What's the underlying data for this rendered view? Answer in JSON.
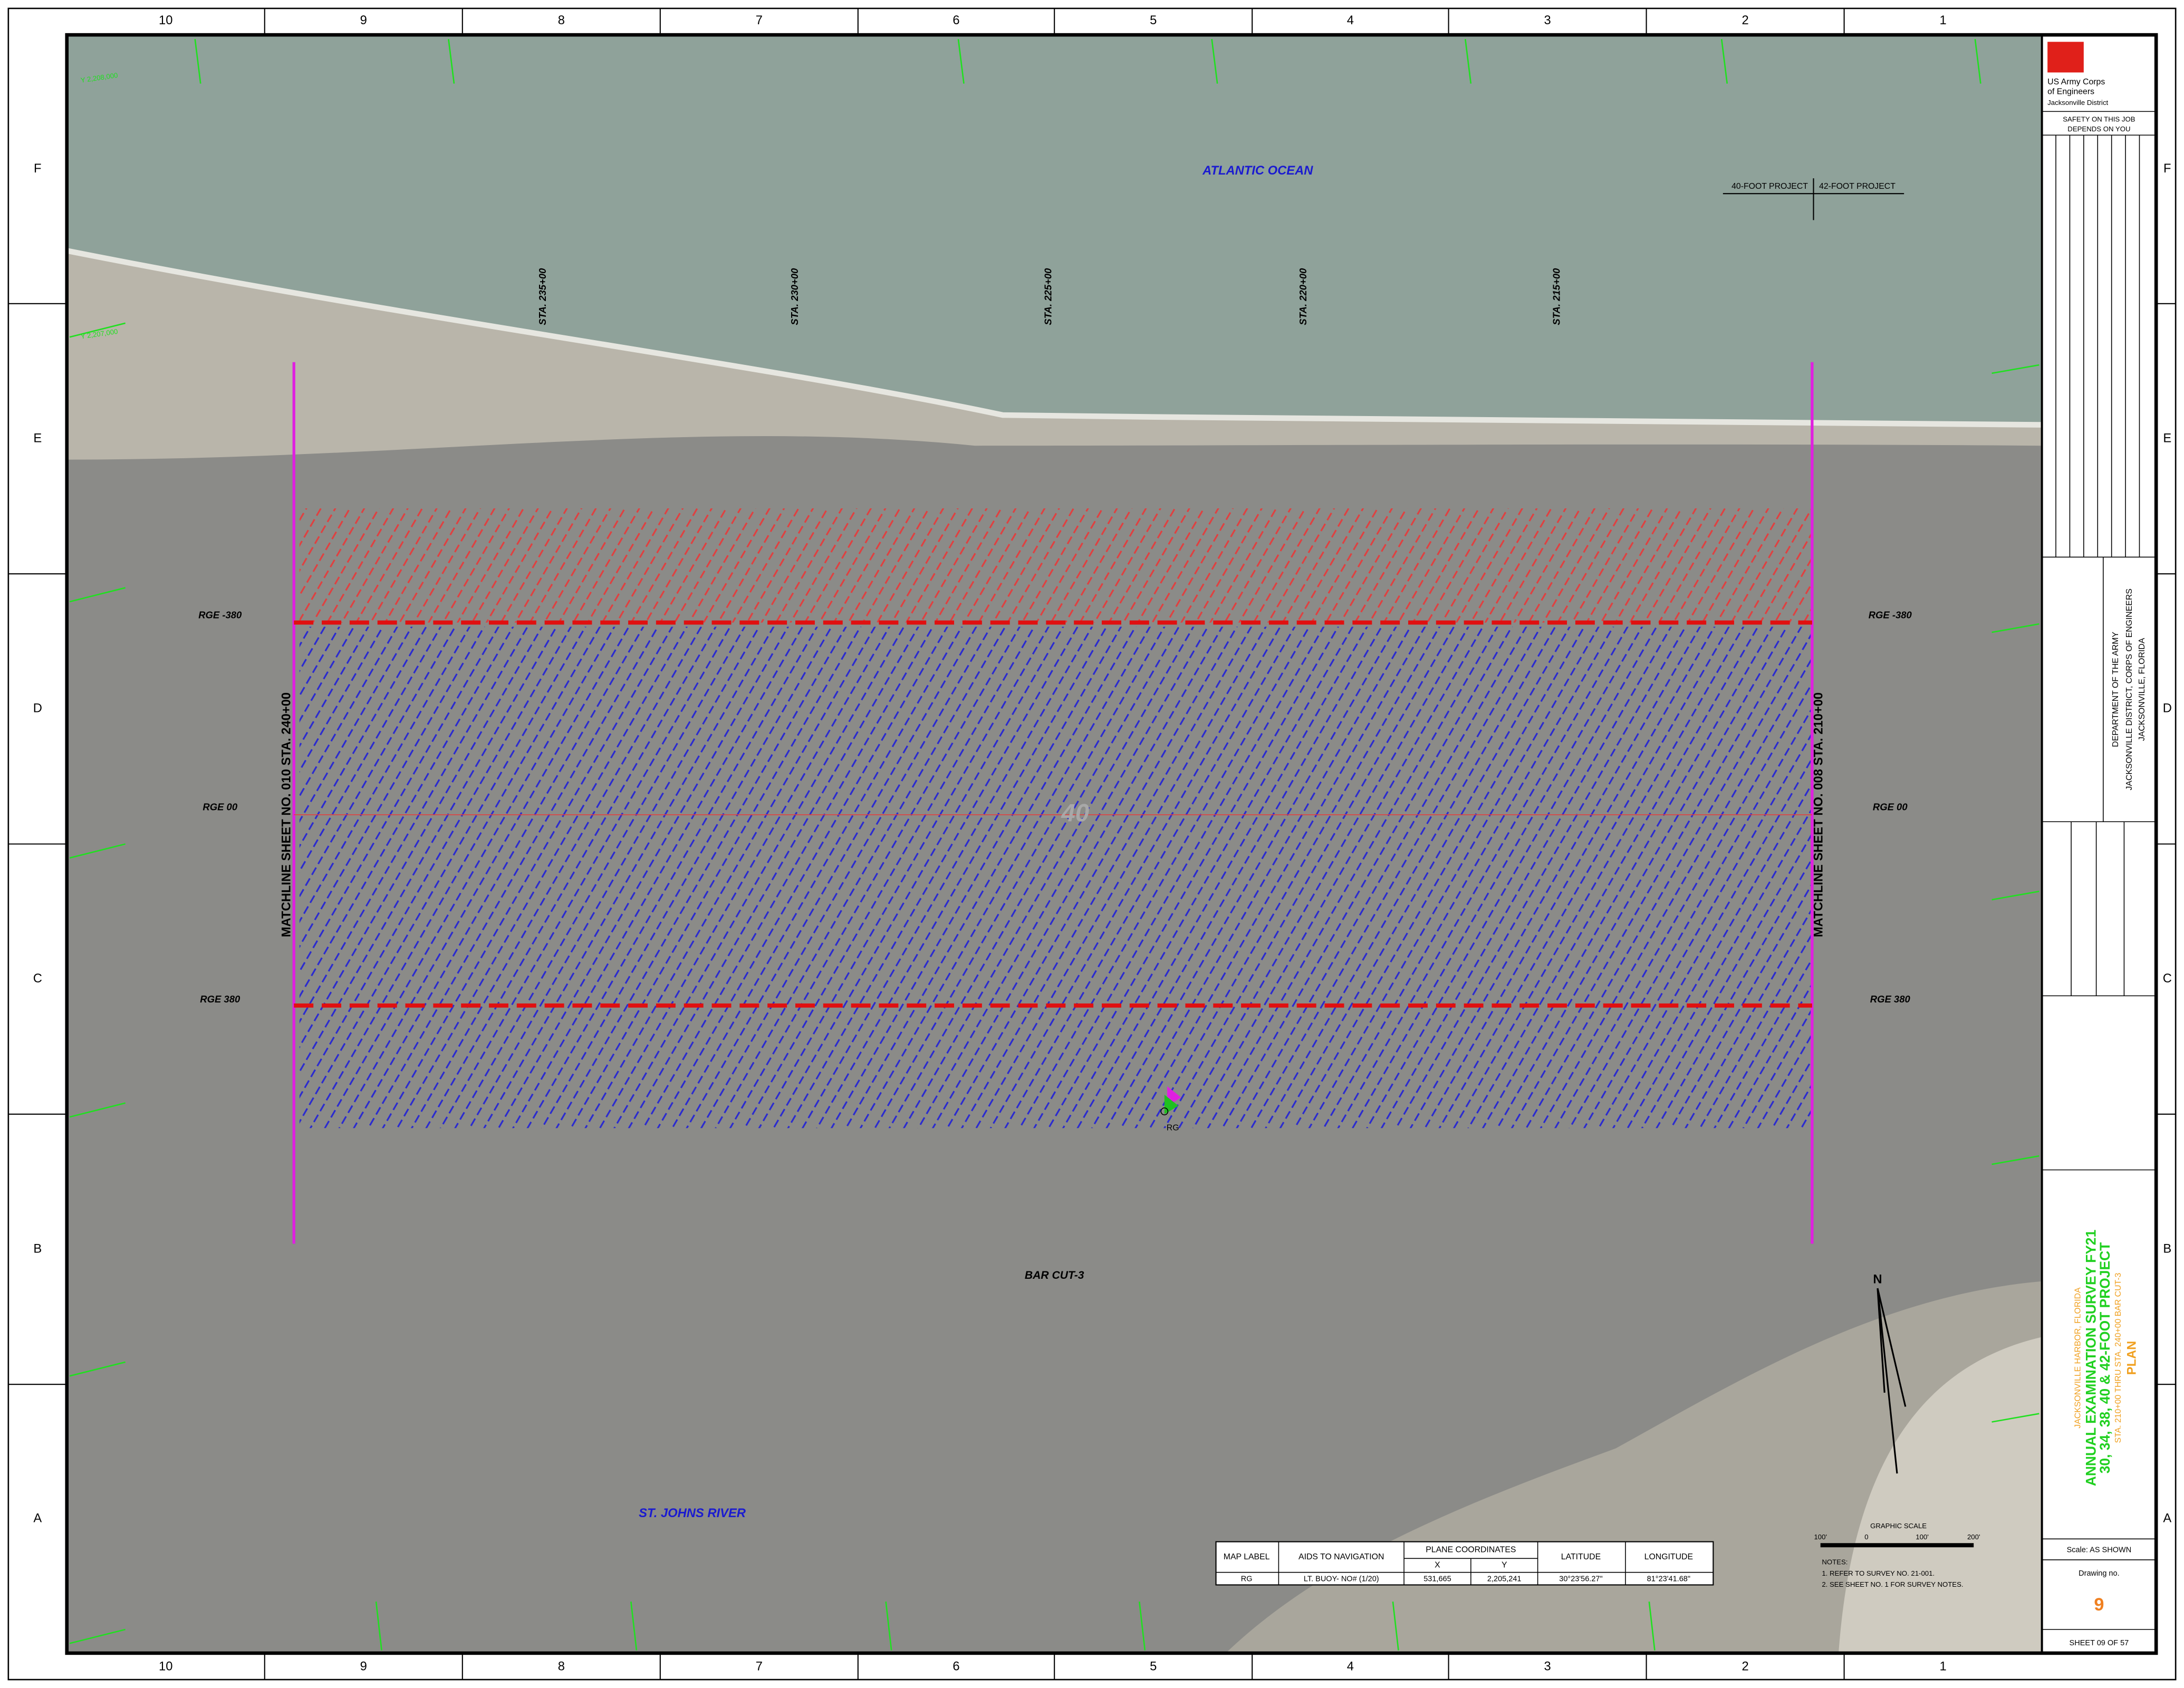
{
  "sheet": {
    "columns": [
      "10",
      "9",
      "8",
      "7",
      "6",
      "5",
      "4",
      "3",
      "2",
      "1"
    ],
    "rows": [
      "F",
      "E",
      "D",
      "C",
      "B",
      "A"
    ]
  },
  "map": {
    "ocean": "ATLANTIC OCEAN",
    "river": "ST. JOHNS RIVER",
    "cut": "BAR CUT-3",
    "depth": "40",
    "buoy": "RG",
    "project_left": "40-FOOT PROJECT",
    "project_right": "42-FOOT PROJECT",
    "stations": [
      "STA. 235+00",
      "STA. 230+00",
      "STA. 225+00",
      "STA. 220+00",
      "STA. 215+00"
    ],
    "matchlines": [
      "MATCHLINE SHEET NO. 010 STA. 240+00",
      "MATCHLINE SHEET NO. 008 STA. 210+00"
    ],
    "ranges": [
      "RGE -380",
      "RGE 00",
      "RGE 380"
    ],
    "grid_y": [
      "Y 2,208,000",
      "Y 2,207,000"
    ]
  },
  "table": {
    "headers": [
      "MAP LABEL",
      "AIDS TO NAVIGATION",
      "PLANE COORDINATES",
      "X",
      "Y",
      "LATITUDE",
      "LONGITUDE"
    ],
    "rows": [
      [
        "RG",
        "LT. BUOY- NO# (1/20)",
        "531,665",
        "2,205,241",
        "30°23'56.27\"",
        "81°23'41.68\""
      ]
    ]
  },
  "scale": {
    "title": "GRAPHIC SCALE",
    "ticks": [
      "100'",
      "0",
      "100'",
      "200'"
    ]
  },
  "notes": [
    "NOTES:",
    "1. REFER TO SURVEY NO. 21-001.",
    "2. SEE SHEET NO. 1 FOR SURVEY NOTES."
  ],
  "title_block": {
    "agency": "US Army Corps",
    "agency2": "of Engineers",
    "district": "Jacksonville District",
    "safety": "SAFETY ON THIS JOB",
    "safety2": "DEPENDS ON YOU",
    "dept": "DEPARTMENT OF THE ARMY",
    "dept2": "JACKSONVILLE DISTRICT, CORPS OF ENGINEERS",
    "dept3": "JACKSONVILLE, FLORIDA",
    "harbor": "JACKSONVILLE HARBOR, FLORIDA",
    "title": "ANNUAL EXAMINATION SURVEY FY21",
    "title2": "30, 34, 38, 40 & 42-FOOT PROJECT",
    "subtitle": "STA. 210+00 THRU STA. 240+00 BAR CUT-3",
    "plan": "PLAN",
    "scale": "Scale:  AS SHOWN",
    "drawing": "Drawing no.",
    "number": "9",
    "sheet": "SHEET  09  OF  57"
  },
  "north": "N"
}
